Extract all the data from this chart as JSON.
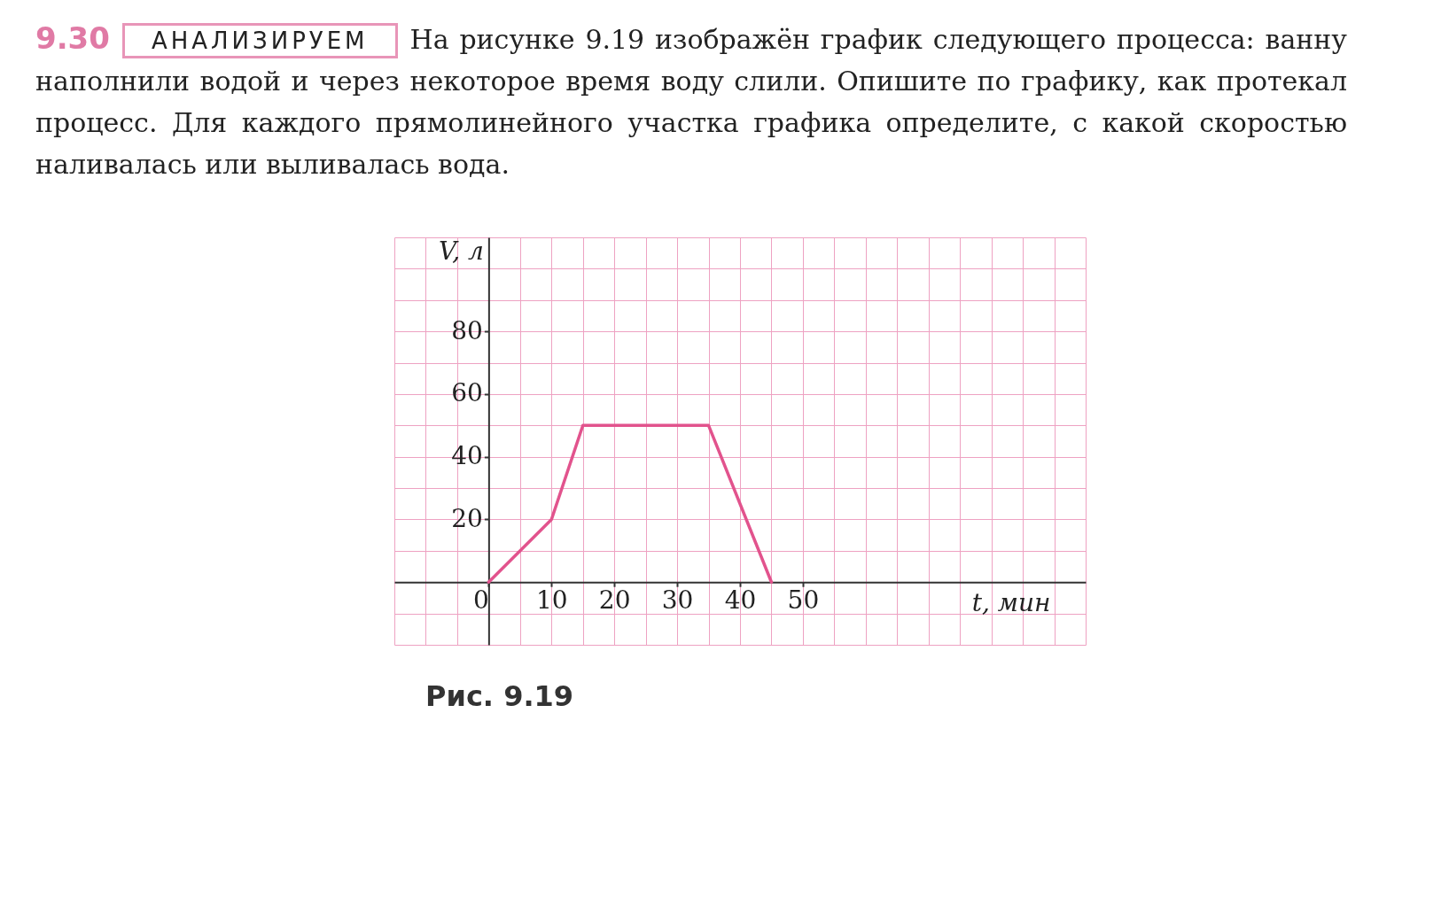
{
  "chart_data": {
    "type": "line",
    "title": "9.30",
    "subtitle": "АНАЛИЗИРУЕМ",
    "annotations": [
      "На рисунке 9.19 изображён график следующего процесса: ванну наполнили водой и через некоторое время воду слили. Опишите по графику, как протекал процесс. Для каждого прямолинейного участка графика определите, с какой скоростью наливалась или выливалась вода.",
      "Рис. 9.19"
    ],
    "xlabel": "t, мин",
    "ylabel": "V, л",
    "x": [
      0,
      10,
      15,
      35,
      45
    ],
    "series": [
      {
        "color": "#e2538d",
        "values": [
          0,
          20,
          50,
          50,
          0
        ]
      }
    ],
    "xlim": [
      -15,
      95
    ],
    "ylim": [
      -20,
      110
    ],
    "xticks": [
      {
        "value": -15,
        "label": null
      },
      {
        "value": -10,
        "label": null
      },
      {
        "value": -5,
        "label": null
      },
      0,
      {
        "value": 5,
        "label": null
      },
      10,
      {
        "value": 15,
        "label": null
      },
      20,
      {
        "value": 25,
        "label": null
      },
      30,
      {
        "value": 35,
        "label": null
      },
      40,
      {
        "value": 45,
        "label": null
      },
      50,
      {
        "value": 55,
        "label": null
      },
      {
        "value": 60,
        "label": null
      },
      {
        "value": 65,
        "label": null
      },
      {
        "value": 70,
        "label": null
      },
      {
        "value": 75,
        "label": null
      },
      {
        "value": 80,
        "label": null
      },
      {
        "value": 85,
        "label": null
      },
      {
        "value": 90,
        "label": null
      },
      {
        "value": 95,
        "label": null
      }
    ],
    "yticks": [
      {
        "value": -20,
        "label": null
      },
      {
        "value": -10,
        "label": null
      },
      {
        "value": 0,
        "label": null
      },
      {
        "value": 10,
        "label": null
      },
      20,
      {
        "value": 30,
        "label": null
      },
      40,
      {
        "value": 50,
        "label": null
      },
      60,
      {
        "value": 70,
        "label": null
      },
      80,
      {
        "value": 90,
        "label": null
      },
      {
        "value": 100,
        "label": null
      },
      {
        "value": 110,
        "label": null
      }
    ],
    "grid": true,
    "line_style": "solid",
    "marker": "none"
  }
}
